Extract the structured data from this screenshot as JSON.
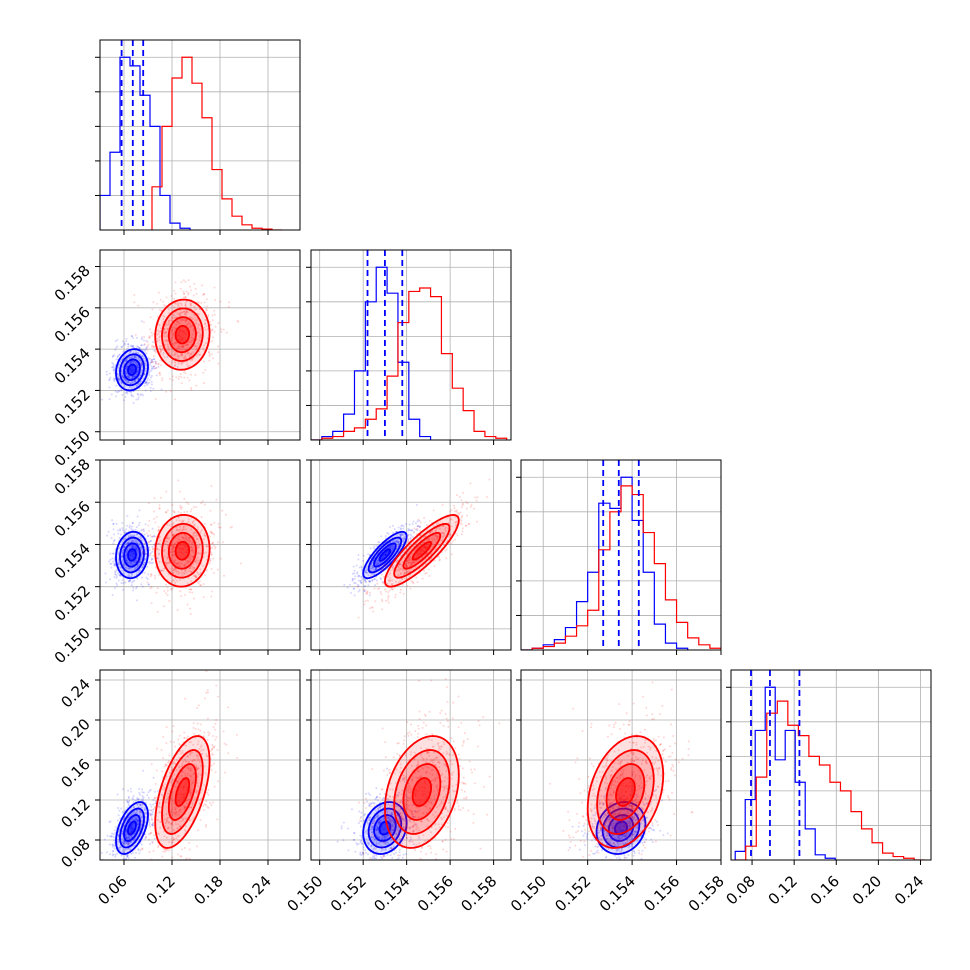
{
  "chart_data": {
    "type": "corner",
    "grid": true,
    "colors": {
      "a": "#0000ff",
      "b": "#ff0000"
    },
    "params": [
      {
        "range": [
          0.03,
          0.28
        ],
        "ticks": [
          "0.06",
          "0.12",
          "0.18",
          "0.24"
        ]
      },
      {
        "range": [
          0.1496,
          0.1588
        ],
        "ticks": [
          "0.150",
          "0.152",
          "0.154",
          "0.156",
          "0.158"
        ]
      },
      {
        "range": [
          0.149,
          0.158
        ],
        "ticks": [
          "0.150",
          "0.152",
          "0.154",
          "0.156",
          "0.158"
        ]
      },
      {
        "range": [
          0.06,
          0.25
        ],
        "ticks": [
          "0.08",
          "0.12",
          "0.16",
          "0.20",
          "0.24"
        ]
      }
    ],
    "quantiles_a": [
      [
        0.057,
        0.071,
        0.084
      ],
      [
        0.1522,
        0.153,
        0.1538
      ],
      [
        0.1527,
        0.1534,
        0.1543
      ],
      [
        0.079,
        0.097,
        0.125
      ]
    ],
    "hist_a": [
      {
        "edges": [
          0.03,
          0.0425,
          0.055,
          0.0675,
          0.08,
          0.0925,
          0.105,
          0.1175,
          0.13,
          0.1425
        ],
        "counts": [
          0.2,
          0.45,
          1.0,
          0.95,
          0.78,
          0.6,
          0.2,
          0.04,
          0.01
        ]
      },
      {
        "edges": [
          0.1496,
          0.1501,
          0.1506,
          0.1511,
          0.1516,
          0.1521,
          0.1526,
          0.1531,
          0.1536,
          0.1541,
          0.1546,
          0.1551
        ],
        "counts": [
          0.0,
          0.02,
          0.05,
          0.15,
          0.4,
          0.8,
          1.0,
          0.85,
          0.45,
          0.12,
          0.02
        ]
      },
      {
        "edges": [
          0.149,
          0.1495,
          0.15,
          0.1505,
          0.151,
          0.1515,
          0.152,
          0.1525,
          0.153,
          0.1535,
          0.154,
          0.1545,
          0.155,
          0.1555,
          0.156,
          0.1565
        ],
        "counts": [
          0.0,
          0.01,
          0.03,
          0.06,
          0.13,
          0.28,
          0.45,
          0.85,
          0.82,
          1.0,
          0.75,
          0.45,
          0.15,
          0.04,
          0.01
        ]
      },
      {
        "edges": [
          0.064,
          0.0735,
          0.083,
          0.0925,
          0.102,
          0.1115,
          0.121,
          0.1305,
          0.14,
          0.1495,
          0.159
        ],
        "counts": [
          0.05,
          0.35,
          0.75,
          1.0,
          0.58,
          0.75,
          0.45,
          0.18,
          0.03,
          0.01
        ]
      }
    ],
    "hist_b": [
      {
        "edges": [
          0.095,
          0.1075,
          0.12,
          0.1325,
          0.145,
          0.1575,
          0.17,
          0.1825,
          0.195,
          0.2075,
          0.22,
          0.2325,
          0.245,
          0.2575
        ],
        "counts": [
          0.25,
          0.6,
          0.88,
          1.0,
          0.85,
          0.65,
          0.35,
          0.18,
          0.08,
          0.03,
          0.01,
          0.005,
          0.0
        ]
      },
      {
        "edges": [
          0.1496,
          0.1501,
          0.1506,
          0.1511,
          0.1516,
          0.1521,
          0.1526,
          0.1531,
          0.1536,
          0.1541,
          0.1546,
          0.1551,
          0.1556,
          0.1561,
          0.1566,
          0.1571,
          0.1576,
          0.1581,
          0.1586
        ],
        "counts": [
          0.0,
          0.01,
          0.02,
          0.05,
          0.07,
          0.12,
          0.18,
          0.37,
          0.68,
          0.86,
          0.88,
          0.83,
          0.5,
          0.3,
          0.17,
          0.05,
          0.02,
          0.01
        ]
      },
      {
        "edges": [
          0.149,
          0.1495,
          0.15,
          0.1505,
          0.151,
          0.1515,
          0.152,
          0.1525,
          0.153,
          0.1535,
          0.154,
          0.1545,
          0.155,
          0.1555,
          0.156,
          0.1565,
          0.157,
          0.1575,
          0.158
        ],
        "counts": [
          0.0,
          0.01,
          0.02,
          0.04,
          0.08,
          0.14,
          0.23,
          0.58,
          0.8,
          0.95,
          0.9,
          0.68,
          0.5,
          0.29,
          0.16,
          0.07,
          0.03,
          0.01
        ]
      },
      {
        "edges": [
          0.064,
          0.074,
          0.084,
          0.094,
          0.104,
          0.114,
          0.124,
          0.134,
          0.144,
          0.154,
          0.164,
          0.174,
          0.184,
          0.194,
          0.204,
          0.214,
          0.224,
          0.234,
          0.244
        ],
        "counts": [
          0.0,
          0.08,
          0.48,
          0.85,
          0.92,
          0.78,
          0.72,
          0.6,
          0.55,
          0.45,
          0.4,
          0.28,
          0.18,
          0.1,
          0.04,
          0.02,
          0.01,
          0.0
        ]
      }
    ],
    "gauss_a": [
      {
        "mx": 0.07,
        "my": 0.153,
        "sx": 0.01,
        "sy": 0.0005,
        "rho": 0.15
      },
      {
        "mx": 0.07,
        "my": 0.1535,
        "sx": 0.01,
        "sy": 0.00055,
        "rho": 0.1
      },
      {
        "mx": 0.153,
        "my": 0.1535,
        "sx": 0.0005,
        "sy": 0.00055,
        "rho": 0.8
      },
      {
        "mx": 0.07,
        "my": 0.092,
        "sx": 0.01,
        "sy": 0.013,
        "rho": 0.5
      },
      {
        "mx": 0.153,
        "my": 0.092,
        "sx": 0.0005,
        "sy": 0.013,
        "rho": 0.2
      },
      {
        "mx": 0.1535,
        "my": 0.092,
        "sx": 0.00055,
        "sy": 0.013,
        "rho": 0.15
      }
    ],
    "gauss_b": [
      {
        "mx": 0.133,
        "my": 0.1547,
        "sx": 0.017,
        "sy": 0.00085,
        "rho": 0.05
      },
      {
        "mx": 0.133,
        "my": 0.1537,
        "sx": 0.017,
        "sy": 0.00085,
        "rho": 0.05
      },
      {
        "mx": 0.1547,
        "my": 0.1537,
        "sx": 0.00085,
        "sy": 0.00085,
        "rho": 0.85
      },
      {
        "mx": 0.133,
        "my": 0.128,
        "sx": 0.017,
        "sy": 0.028,
        "rho": 0.55
      },
      {
        "mx": 0.1547,
        "my": 0.128,
        "sx": 0.00085,
        "sy": 0.028,
        "rho": 0.3
      },
      {
        "mx": 0.1537,
        "my": 0.128,
        "sx": 0.00085,
        "sy": 0.028,
        "rho": 0.3
      }
    ]
  }
}
